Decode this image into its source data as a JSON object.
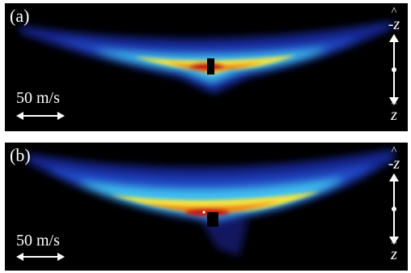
{
  "panels": [
    {
      "label": "(a)",
      "scale_label": "50 m/s",
      "axis_top_label": "-z",
      "axis_bottom_label": "z",
      "hat": "^"
    },
    {
      "label": "(b)",
      "scale_label": "50 m/s",
      "axis_top_label": "-z",
      "axis_bottom_label": "z",
      "hat": "^"
    }
  ],
  "colors": {
    "background": "#000000",
    "low": "#1a2a9e",
    "mid": "#3fc0f0",
    "high_yellow": "#f6e640",
    "high_orange": "#f08a1c",
    "peak_red": "#c81414",
    "marker": "#000000",
    "annotation": "#ffffff"
  }
}
